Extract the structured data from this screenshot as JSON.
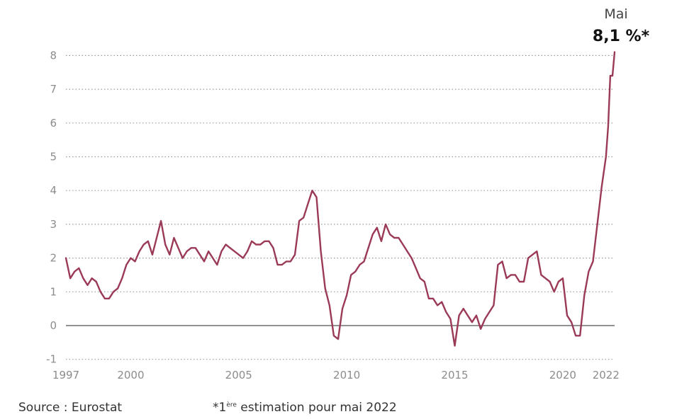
{
  "chart_data": {
    "type": "line",
    "title": "",
    "xlabel": "",
    "ylabel": "",
    "ylim": [
      -1,
      8
    ],
    "yticks": [
      -1,
      0,
      1,
      2,
      3,
      4,
      5,
      6,
      7,
      8
    ],
    "xlim": [
      1997,
      2022.4
    ],
    "xticks": [
      1997,
      2000,
      2005,
      2010,
      2015,
      2020,
      2022
    ],
    "grid": true,
    "series": [
      {
        "name": "",
        "color": "#9b3a57",
        "x": [
          1997.0,
          1997.2,
          1997.4,
          1997.6,
          1997.8,
          1998.0,
          1998.2,
          1998.4,
          1998.6,
          1998.8,
          1999.0,
          1999.2,
          1999.4,
          1999.6,
          1999.8,
          2000.0,
          2000.2,
          2000.4,
          2000.6,
          2000.8,
          2001.0,
          2001.2,
          2001.4,
          2001.6,
          2001.8,
          2002.0,
          2002.2,
          2002.4,
          2002.6,
          2002.8,
          2003.0,
          2003.2,
          2003.4,
          2003.6,
          2003.8,
          2004.0,
          2004.2,
          2004.4,
          2004.6,
          2004.8,
          2005.0,
          2005.2,
          2005.4,
          2005.6,
          2005.8,
          2006.0,
          2006.2,
          2006.4,
          2006.6,
          2006.8,
          2007.0,
          2007.2,
          2007.4,
          2007.6,
          2007.8,
          2008.0,
          2008.2,
          2008.4,
          2008.6,
          2008.8,
          2009.0,
          2009.2,
          2009.4,
          2009.6,
          2009.8,
          2010.0,
          2010.2,
          2010.4,
          2010.6,
          2010.8,
          2011.0,
          2011.2,
          2011.4,
          2011.6,
          2011.8,
          2012.0,
          2012.2,
          2012.4,
          2012.6,
          2012.8,
          2013.0,
          2013.2,
          2013.4,
          2013.6,
          2013.8,
          2014.0,
          2014.2,
          2014.4,
          2014.6,
          2014.8,
          2015.0,
          2015.2,
          2015.4,
          2015.6,
          2015.8,
          2016.0,
          2016.2,
          2016.4,
          2016.6,
          2016.8,
          2017.0,
          2017.2,
          2017.4,
          2017.6,
          2017.8,
          2018.0,
          2018.2,
          2018.4,
          2018.6,
          2018.8,
          2019.0,
          2019.2,
          2019.4,
          2019.6,
          2019.8,
          2020.0,
          2020.2,
          2020.4,
          2020.6,
          2020.8,
          2021.0,
          2021.2,
          2021.4,
          2021.6,
          2021.8,
          2022.0,
          2022.1,
          2022.2,
          2022.3,
          2022.4
        ],
        "values": [
          2.0,
          1.4,
          1.6,
          1.7,
          1.4,
          1.2,
          1.4,
          1.3,
          1.0,
          0.8,
          0.8,
          1.0,
          1.1,
          1.4,
          1.8,
          2.0,
          1.9,
          2.2,
          2.4,
          2.5,
          2.1,
          2.6,
          3.1,
          2.4,
          2.1,
          2.6,
          2.3,
          2.0,
          2.2,
          2.3,
          2.3,
          2.1,
          1.9,
          2.2,
          2.0,
          1.8,
          2.2,
          2.4,
          2.3,
          2.2,
          2.1,
          2.0,
          2.2,
          2.5,
          2.4,
          2.4,
          2.5,
          2.5,
          2.3,
          1.8,
          1.8,
          1.9,
          1.9,
          2.1,
          3.1,
          3.2,
          3.6,
          4.0,
          3.8,
          2.2,
          1.1,
          0.6,
          -0.3,
          -0.4,
          0.5,
          0.9,
          1.5,
          1.6,
          1.8,
          1.9,
          2.3,
          2.7,
          2.9,
          2.5,
          3.0,
          2.7,
          2.6,
          2.6,
          2.4,
          2.2,
          2.0,
          1.7,
          1.4,
          1.3,
          0.8,
          0.8,
          0.6,
          0.7,
          0.4,
          0.2,
          -0.6,
          0.3,
          0.5,
          0.3,
          0.1,
          0.3,
          -0.1,
          0.2,
          0.4,
          0.6,
          1.8,
          1.9,
          1.4,
          1.5,
          1.5,
          1.3,
          1.3,
          2.0,
          2.1,
          2.2,
          1.5,
          1.4,
          1.3,
          1.0,
          1.3,
          1.4,
          0.3,
          0.1,
          -0.3,
          -0.3,
          0.9,
          1.6,
          1.9,
          3.0,
          4.1,
          5.0,
          5.9,
          7.4,
          7.4,
          8.1
        ]
      }
    ],
    "annotation": {
      "month": "Mai",
      "value": "8,1 %*"
    }
  },
  "footer": {
    "source": "Source : Eurostat",
    "note_prefix": "*1",
    "note_sup": "ère",
    "note_text": " estimation pour mai 2022"
  }
}
